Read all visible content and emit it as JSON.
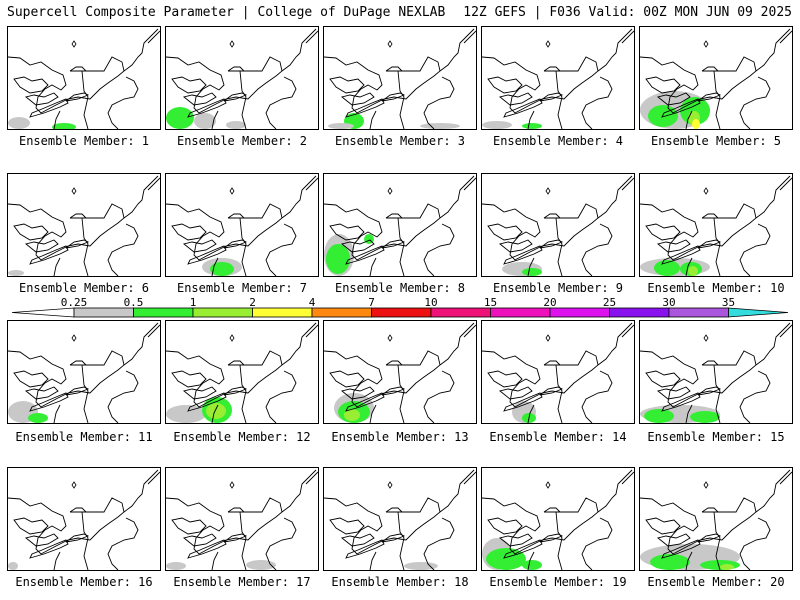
{
  "header": {
    "title_left": "Supercell Composite Parameter | College of DuPage NEXLAB",
    "title_right": "12Z GEFS | F036 Valid: 00Z MON JUN 09 2025"
  },
  "legend": {
    "levels": [
      "0.25",
      "0.5",
      "1",
      "2",
      "4",
      "7",
      "10",
      "15",
      "20",
      "25",
      "30",
      "35"
    ],
    "colors": [
      "#c8c8c8",
      "#33ee33",
      "#99ee33",
      "#ffff33",
      "#ff8811",
      "#ee1111",
      "#ee1177",
      "#ee11bb",
      "#dd11ee",
      "#8811ee",
      "#aa55dd",
      "#33dddd"
    ]
  },
  "panels": [
    {
      "label": "Ensemble Member: 1"
    },
    {
      "label": "Ensemble Member: 2"
    },
    {
      "label": "Ensemble Member: 3"
    },
    {
      "label": "Ensemble Member: 4"
    },
    {
      "label": "Ensemble Member: 5"
    },
    {
      "label": "Ensemble Member: 6"
    },
    {
      "label": "Ensemble Member: 7"
    },
    {
      "label": "Ensemble Member: 8"
    },
    {
      "label": "Ensemble Member: 9"
    },
    {
      "label": "Ensemble Member: 10"
    },
    {
      "label": "Ensemble Member: 11"
    },
    {
      "label": "Ensemble Member: 12"
    },
    {
      "label": "Ensemble Member: 13"
    },
    {
      "label": "Ensemble Member: 14"
    },
    {
      "label": "Ensemble Member: 15"
    },
    {
      "label": "Ensemble Member: 16"
    },
    {
      "label": "Ensemble Member: 17"
    },
    {
      "label": "Ensemble Member: 18"
    },
    {
      "label": "Ensemble Member: 19"
    },
    {
      "label": "Ensemble Member: 20"
    }
  ]
}
